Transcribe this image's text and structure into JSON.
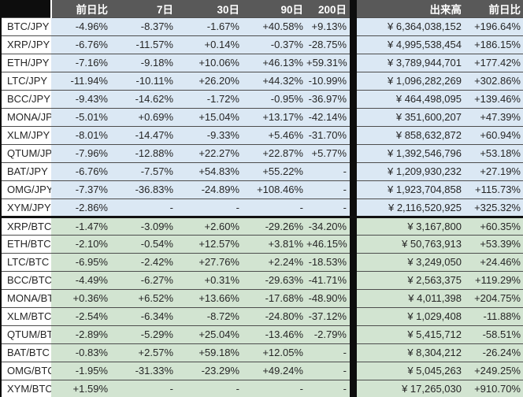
{
  "colors": {
    "header_bg": "#595959",
    "header_text": "#ffffff",
    "corner_bg": "#0d0d0d",
    "divider_bg": "#0d0d0d",
    "jpy_row_bg": "#dbe8f4",
    "btc_row_bg": "#d2e4d1",
    "label_bg": "#ffffff",
    "cell_text": "#262626",
    "grid_line": "#4d4d4d",
    "section_line": "#111111"
  },
  "chart_data": {
    "type": "table",
    "column_headers": [
      "前日比",
      "7日",
      "30日",
      "90日",
      "200日",
      "出来高",
      "前日比"
    ],
    "sections": [
      {
        "id": "jpy",
        "description": "JPY pairs",
        "row_color": "#dbe8f4"
      },
      {
        "id": "btc",
        "description": "BTC pairs",
        "row_color": "#d2e4d1"
      }
    ],
    "rows": [
      {
        "pair": "BTC/JPY",
        "section": "jpy",
        "day_change": "-4.96%",
        "d7": "-8.37%",
        "d30": "-1.67%",
        "d90": "+40.58%",
        "d200": "+9.13%",
        "volume": "¥ 6,364,038,152",
        "volume_day_change": "+196.64%"
      },
      {
        "pair": "XRP/JPY",
        "section": "jpy",
        "day_change": "-6.76%",
        "d7": "-11.57%",
        "d30": "+0.14%",
        "d90": "-0.37%",
        "d200": "-28.75%",
        "volume": "¥ 4,995,538,454",
        "volume_day_change": "+186.15%"
      },
      {
        "pair": "ETH/JPY",
        "section": "jpy",
        "day_change": "-7.16%",
        "d7": "-9.18%",
        "d30": "+10.06%",
        "d90": "+46.13%",
        "d200": "+59.31%",
        "volume": "¥ 3,789,944,701",
        "volume_day_change": "+177.42%"
      },
      {
        "pair": "LTC/JPY",
        "section": "jpy",
        "day_change": "-11.94%",
        "d7": "-10.11%",
        "d30": "+26.20%",
        "d90": "+44.32%",
        "d200": "-10.99%",
        "volume": "¥ 1,096,282,269",
        "volume_day_change": "+302.86%"
      },
      {
        "pair": "BCC/JPY",
        "section": "jpy",
        "day_change": "-9.43%",
        "d7": "-14.62%",
        "d30": "-1.72%",
        "d90": "-0.95%",
        "d200": "-36.97%",
        "volume": "¥ 464,498,095",
        "volume_day_change": "+139.46%"
      },
      {
        "pair": "MONA/JPY",
        "section": "jpy",
        "day_change": "-5.01%",
        "d7": "+0.69%",
        "d30": "+15.04%",
        "d90": "+13.17%",
        "d200": "-42.14%",
        "volume": "¥ 351,600,207",
        "volume_day_change": "+47.39%"
      },
      {
        "pair": "XLM/JPY",
        "section": "jpy",
        "day_change": "-8.01%",
        "d7": "-14.47%",
        "d30": "-9.33%",
        "d90": "+5.46%",
        "d200": "-31.70%",
        "volume": "¥ 858,632,872",
        "volume_day_change": "+60.94%"
      },
      {
        "pair": "QTUM/JPY",
        "section": "jpy",
        "day_change": "-7.96%",
        "d7": "-12.88%",
        "d30": "+22.27%",
        "d90": "+22.87%",
        "d200": "+5.77%",
        "volume": "¥ 1,392,546,796",
        "volume_day_change": "+53.18%"
      },
      {
        "pair": "BAT/JPY",
        "section": "jpy",
        "day_change": "-6.76%",
        "d7": "-7.57%",
        "d30": "+54.83%",
        "d90": "+55.22%",
        "d200": "-",
        "volume": "¥ 1,209,930,232",
        "volume_day_change": "+27.19%"
      },
      {
        "pair": "OMG/JPY",
        "section": "jpy",
        "day_change": "-7.37%",
        "d7": "-36.83%",
        "d30": "-24.89%",
        "d90": "+108.46%",
        "d200": "-",
        "volume": "¥ 1,923,704,858",
        "volume_day_change": "+115.73%"
      },
      {
        "pair": "XYM/JPY",
        "section": "jpy",
        "day_change": "-2.86%",
        "d7": "-",
        "d30": "-",
        "d90": "-",
        "d200": "-",
        "volume": "¥ 2,116,520,925",
        "volume_day_change": "+325.32%"
      },
      {
        "pair": "XRP/BTC",
        "section": "btc",
        "day_change": "-1.47%",
        "d7": "-3.09%",
        "d30": "+2.60%",
        "d90": "-29.26%",
        "d200": "-34.20%",
        "volume": "¥ 3,167,800",
        "volume_day_change": "+60.35%"
      },
      {
        "pair": "ETH/BTC",
        "section": "btc",
        "day_change": "-2.10%",
        "d7": "-0.54%",
        "d30": "+12.57%",
        "d90": "+3.81%",
        "d200": "+46.15%",
        "volume": "¥ 50,763,913",
        "volume_day_change": "+53.39%"
      },
      {
        "pair": "LTC/BTC",
        "section": "btc",
        "day_change": "-6.95%",
        "d7": "-2.42%",
        "d30": "+27.76%",
        "d90": "+2.24%",
        "d200": "-18.53%",
        "volume": "¥ 3,249,050",
        "volume_day_change": "+24.46%"
      },
      {
        "pair": "BCC/BTC",
        "section": "btc",
        "day_change": "-4.49%",
        "d7": "-6.27%",
        "d30": "+0.31%",
        "d90": "-29.63%",
        "d200": "-41.71%",
        "volume": "¥ 2,563,375",
        "volume_day_change": "+119.29%"
      },
      {
        "pair": "MONA/BTC",
        "section": "btc",
        "day_change": "+0.36%",
        "d7": "+6.52%",
        "d30": "+13.66%",
        "d90": "-17.68%",
        "d200": "-48.90%",
        "volume": "¥ 4,011,398",
        "volume_day_change": "+204.75%"
      },
      {
        "pair": "XLM/BTC",
        "section": "btc",
        "day_change": "-2.54%",
        "d7": "-6.34%",
        "d30": "-8.72%",
        "d90": "-24.80%",
        "d200": "-37.12%",
        "volume": "¥ 1,029,408",
        "volume_day_change": "-11.88%"
      },
      {
        "pair": "QTUM/BTC",
        "section": "btc",
        "day_change": "-2.89%",
        "d7": "-5.29%",
        "d30": "+25.04%",
        "d90": "-13.46%",
        "d200": "-2.79%",
        "volume": "¥ 5,415,712",
        "volume_day_change": "-58.51%"
      },
      {
        "pair": "BAT/BTC",
        "section": "btc",
        "day_change": "-0.83%",
        "d7": "+2.57%",
        "d30": "+59.18%",
        "d90": "+12.05%",
        "d200": "-",
        "volume": "¥ 8,304,212",
        "volume_day_change": "-26.24%"
      },
      {
        "pair": "OMG/BTC",
        "section": "btc",
        "day_change": "-1.95%",
        "d7": "-31.33%",
        "d30": "-23.29%",
        "d90": "+49.24%",
        "d200": "-",
        "volume": "¥ 5,045,263",
        "volume_day_change": "+249.25%"
      },
      {
        "pair": "XYM/BTC",
        "section": "btc",
        "day_change": "+1.59%",
        "d7": "-",
        "d30": "-",
        "d90": "-",
        "d200": "-",
        "volume": "¥ 17,265,030",
        "volume_day_change": "+910.70%"
      }
    ]
  }
}
